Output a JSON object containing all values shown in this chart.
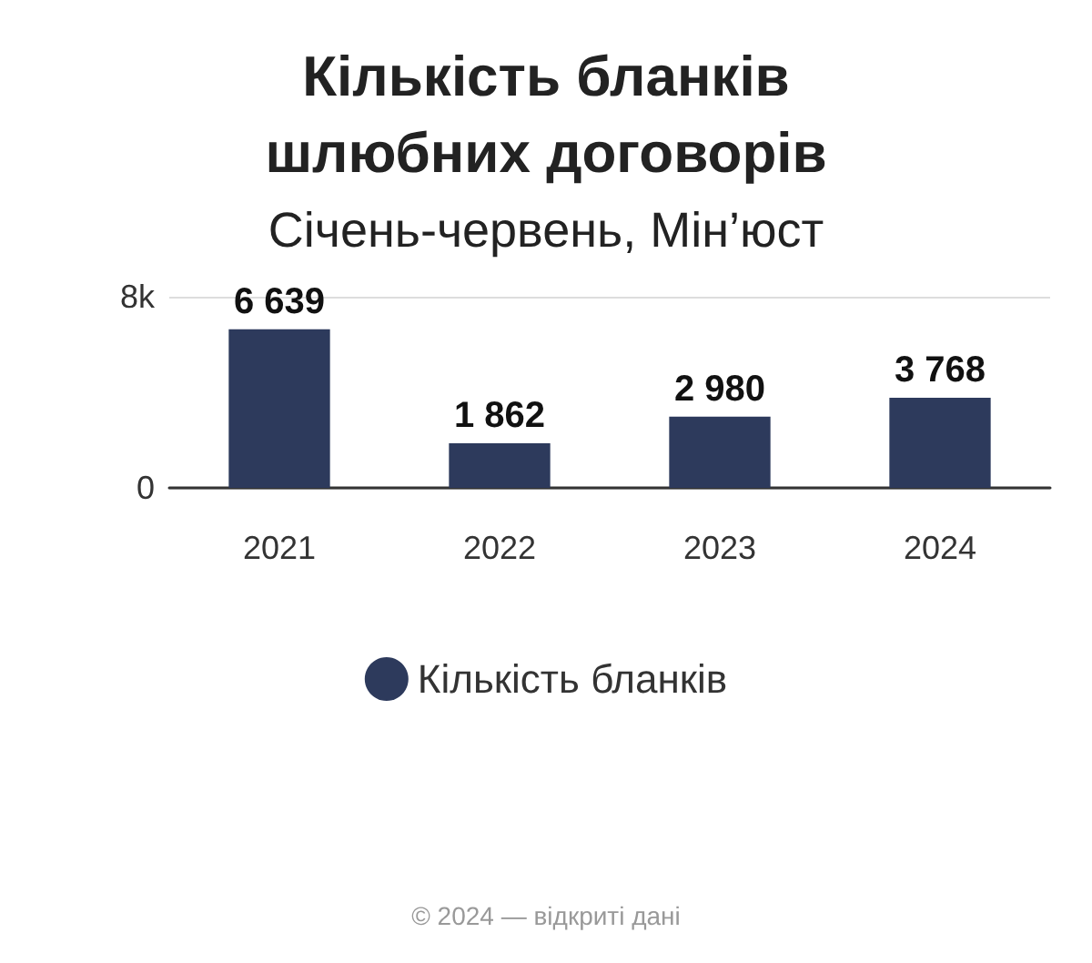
{
  "chart_data": {
    "type": "bar",
    "title": "Кількість бланків\nшлюбних договорів",
    "subtitle": "Січень-червень, Мін’юст",
    "categories": [
      "2021",
      "2022",
      "2023",
      "2024"
    ],
    "series": [
      {
        "name": "Кількість бланків",
        "color": "#2d3a5c",
        "values": [
          6639,
          1862,
          2980,
          3768
        ],
        "value_labels": [
          "6 639",
          "1 862",
          "2 980",
          "3 768"
        ]
      }
    ],
    "ylim": [
      0,
      8000
    ],
    "yticks": [
      0,
      {
        "value": 8000,
        "label": "8k"
      }
    ],
    "grid": "y",
    "legend": "bottom",
    "annotations": [
      "© 2024 — відкриті дані"
    ]
  }
}
